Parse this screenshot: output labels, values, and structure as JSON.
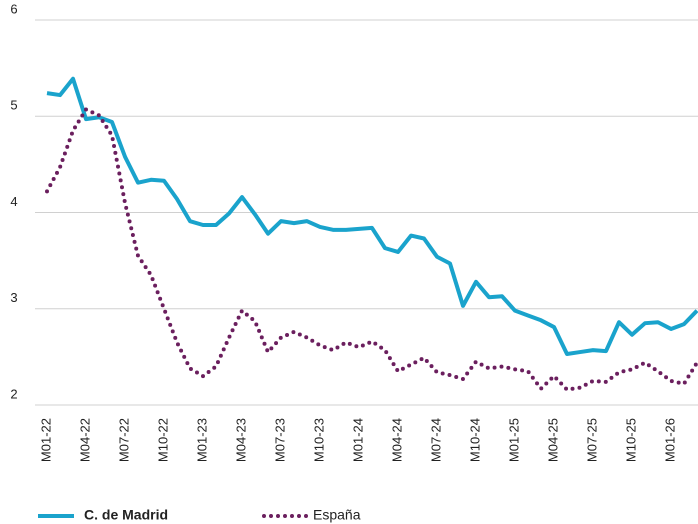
{
  "chart_data": {
    "type": "line",
    "categories": [
      "M01-22",
      null,
      null,
      "M04-22",
      null,
      null,
      "M07-22",
      null,
      null,
      "M10-22",
      null,
      null,
      "M01-23",
      null,
      null,
      "M04-23",
      null,
      null,
      "M07-23",
      null,
      null,
      "M10-23",
      null,
      null,
      "M01-24",
      null,
      null,
      "M04-24",
      null,
      null,
      "M07-24",
      null,
      null,
      "M10-24",
      null,
      null,
      "M01-25",
      null,
      null,
      "M04-25",
      null,
      null,
      "M07-25",
      null,
      null,
      "M10-25",
      null,
      null,
      "M01-26",
      null,
      null
    ],
    "series": [
      {
        "name": "C. de Madrid",
        "color": "#1aa3cc",
        "values": [
          5.24,
          5.22,
          5.39,
          4.97,
          4.99,
          4.94,
          4.58,
          4.31,
          4.34,
          4.33,
          4.14,
          3.91,
          3.87,
          3.87,
          3.99,
          4.16,
          3.98,
          3.78,
          3.91,
          3.89,
          3.91,
          3.85,
          3.82,
          3.82,
          3.83,
          3.84,
          3.63,
          3.59,
          3.76,
          3.73,
          3.54,
          3.47,
          3.03,
          3.28,
          3.12,
          3.13,
          2.98,
          2.93,
          2.88,
          2.81,
          2.53,
          2.55,
          2.57,
          2.56,
          2.86,
          2.73,
          2.85,
          2.86,
          2.79,
          2.84,
          2.98
        ]
      },
      {
        "name": "España",
        "color": "#6b1f5e",
        "values": [
          4.22,
          4.47,
          4.85,
          5.07,
          5.01,
          4.8,
          4.1,
          3.55,
          3.35,
          3.0,
          2.65,
          2.38,
          2.3,
          2.4,
          2.7,
          2.98,
          2.87,
          2.55,
          2.7,
          2.76,
          2.7,
          2.62,
          2.57,
          2.65,
          2.6,
          2.66,
          2.57,
          2.35,
          2.42,
          2.49,
          2.34,
          2.31,
          2.27,
          2.45,
          2.38,
          2.4,
          2.37,
          2.35,
          2.17,
          2.3,
          2.16,
          2.18,
          2.25,
          2.24,
          2.34,
          2.37,
          2.44,
          2.35,
          2.25,
          2.22,
          2.44
        ]
      }
    ],
    "ylim": [
      2,
      6
    ],
    "yticks": [
      2,
      3,
      4,
      5,
      6
    ],
    "grid": true
  }
}
